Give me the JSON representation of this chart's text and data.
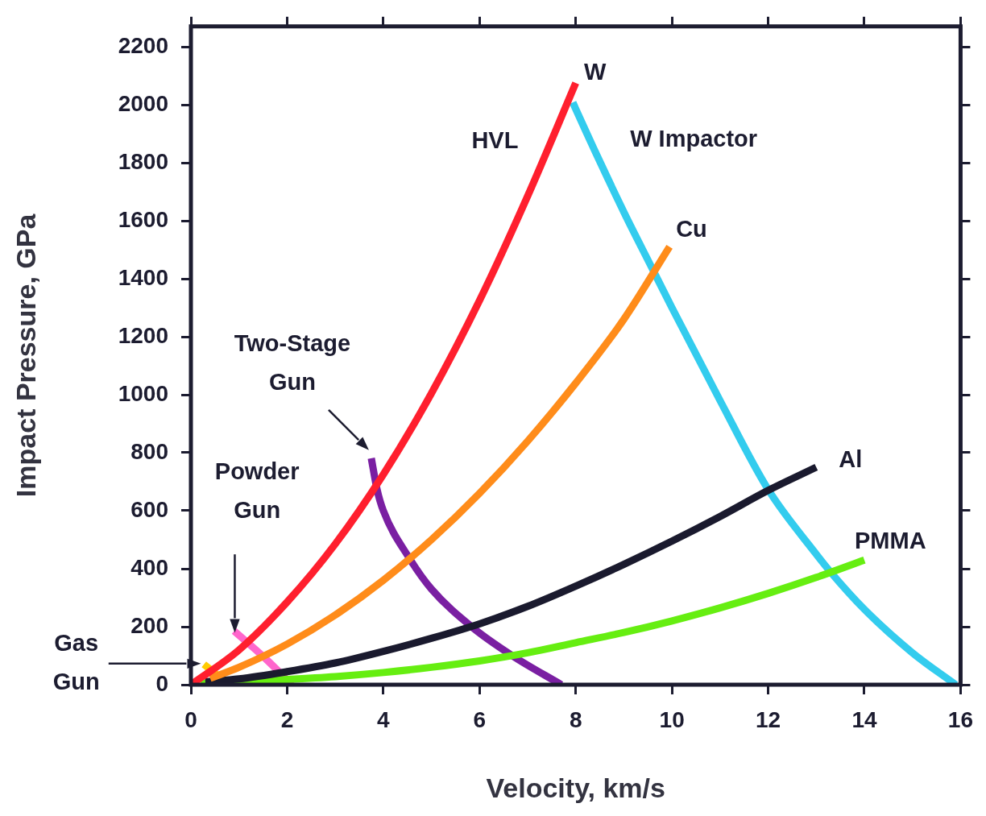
{
  "chart_data": {
    "type": "line",
    "xlabel": "Velocity, km/s",
    "ylabel": "Impact Pressure, GPa",
    "xlim": [
      0,
      16
    ],
    "ylim": [
      0,
      2270
    ],
    "xticks": [
      0,
      2,
      4,
      6,
      8,
      10,
      12,
      14,
      16
    ],
    "yticks": [
      0,
      200,
      400,
      600,
      800,
      1000,
      1200,
      1400,
      1600,
      1800,
      2000,
      2200
    ],
    "grid": false,
    "legend": false,
    "marker": "none",
    "line_style": "solid",
    "annotations": [
      "HVL",
      {
        "text": "Two-Stage Gun",
        "x": 3.75,
        "y": 781
      },
      "Powder Gun",
      "Gas Gun"
    ],
    "series": [
      {
        "name": "W",
        "color": "#ff1f2e",
        "x": [
          0,
          1,
          2,
          3,
          4,
          5,
          6,
          7,
          8
        ],
        "values": [
          0,
          120,
          285,
          485,
          725,
          1005,
          1325,
          1685,
          2075
        ]
      },
      {
        "name": "Cu",
        "color": "#ff8c1a",
        "x": [
          0.4,
          1,
          2,
          3,
          4,
          5,
          6,
          7,
          8,
          9,
          9.95
        ],
        "values": [
          22,
          60,
          140,
          240,
          360,
          500,
          660,
          840,
          1040,
          1260,
          1510
        ]
      },
      {
        "name": "Al",
        "color": "#1a1a2e",
        "x": [
          0.3,
          1,
          2,
          3,
          4,
          5,
          6,
          7,
          8,
          9,
          10,
          11,
          12,
          13
        ],
        "values": [
          10,
          20,
          45,
          75,
          115,
          160,
          210,
          270,
          340,
          415,
          495,
          580,
          670,
          750
        ]
      },
      {
        "name": "PMMA",
        "color": "#66ee11",
        "x": [
          0.2,
          1,
          2,
          3,
          4,
          5,
          6,
          7,
          8,
          9,
          10,
          11,
          12,
          13,
          14
        ],
        "values": [
          5,
          10,
          18,
          28,
          42,
          60,
          82,
          110,
          145,
          180,
          220,
          265,
          315,
          370,
          430
        ]
      },
      {
        "name": "W Impactor",
        "color": "#33ccee",
        "x": [
          7.94,
          8,
          9,
          9.6,
          10,
          11,
          12,
          13,
          13.3,
          14,
          15,
          15.9
        ],
        "values": [
          2008,
          1985,
          1630,
          1432,
          1300,
          980,
          673,
          450,
          388,
          260,
          110,
          0
        ]
      },
      {
        "color": "#7a1fa2",
        "x": [
          3.75,
          3.87,
          4,
          4.55,
          5,
          5.85,
          6.7,
          7.7
        ],
        "values": [
          781,
          673,
          600,
          434,
          330,
          198,
          98,
          0
        ]
      },
      {
        "color": "#ff66cc",
        "x": [
          0.9,
          1.55,
          2.1
        ],
        "values": [
          185,
          90,
          0
        ]
      },
      {
        "color": "#ffcc00",
        "x": [
          0.27,
          0.8
        ],
        "values": [
          70,
          0
        ]
      }
    ]
  }
}
